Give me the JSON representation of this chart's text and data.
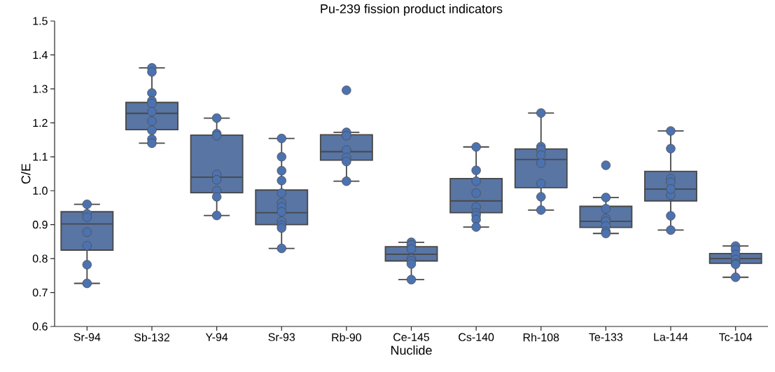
{
  "chart_data": {
    "type": "box",
    "title": "Pu-239 fission product indicators",
    "xlabel": "Nuclide",
    "ylabel": "C/E",
    "categories": [
      "Sr-94",
      "Sb-132",
      "Y-94",
      "Sr-93",
      "Rb-90",
      "Ce-145",
      "Cs-140",
      "Rh-108",
      "Te-133",
      "La-144",
      "Tc-104"
    ],
    "ylim": [
      0.6,
      1.5
    ],
    "yticks": [
      0.6,
      0.7,
      0.8,
      0.9,
      {
        "value": 1.0,
        "label": "1.0"
      },
      1.1,
      1.2,
      1.3,
      1.4,
      1.5
    ],
    "series": [
      {
        "color": "#5875a4",
        "boxes": [
          {
            "low": 0.727,
            "q1": 0.825,
            "median": 0.902,
            "q3": 0.938,
            "high": 0.96
          },
          {
            "low": 1.14,
            "q1": 1.18,
            "median": 1.228,
            "q3": 1.26,
            "high": 1.362
          },
          {
            "low": 0.927,
            "q1": 0.994,
            "median": 1.04,
            "q3": 1.164,
            "high": 1.214
          },
          {
            "low": 0.83,
            "q1": 0.9,
            "median": 0.935,
            "q3": 1.002,
            "high": 1.154
          },
          {
            "low": 1.028,
            "q1": 1.09,
            "median": 1.115,
            "q3": 1.165,
            "high": 1.172,
            "outliers": [
              1.296
            ]
          },
          {
            "low": 0.738,
            "q1": 0.793,
            "median": 0.813,
            "q3": 0.835,
            "high": 0.848
          },
          {
            "low": 0.893,
            "q1": 0.935,
            "median": 0.97,
            "q3": 1.036,
            "high": 1.129
          },
          {
            "low": 0.943,
            "q1": 1.009,
            "median": 1.092,
            "q3": 1.123,
            "high": 1.229
          },
          {
            "low": 0.874,
            "q1": 0.892,
            "median": 0.91,
            "q3": 0.954,
            "high": 0.98,
            "outliers": [
              1.075
            ]
          },
          {
            "low": 0.884,
            "q1": 0.97,
            "median": 1.005,
            "q3": 1.057,
            "high": 1.176
          },
          {
            "low": 0.745,
            "q1": 0.786,
            "median": 0.8,
            "q3": 0.815,
            "high": 0.837
          }
        ]
      },
      {
        "type": "scatter",
        "color": "#4c72b0",
        "x": [
          "Sr-94",
          "Sr-94",
          "Sr-94",
          "Sr-94",
          "Sr-94",
          "Sr-94",
          "Sr-94",
          "Sb-132",
          "Sb-132",
          "Sb-132",
          "Sb-132",
          "Sb-132",
          "Sb-132",
          "Sb-132",
          "Sb-132",
          "Sb-132",
          "Sb-132",
          "Y-94",
          "Y-94",
          "Y-94",
          "Y-94",
          "Y-94",
          "Y-94",
          "Y-94",
          "Y-94",
          "Sr-93",
          "Sr-93",
          "Sr-93",
          "Sr-93",
          "Sr-93",
          "Sr-93",
          "Sr-93",
          "Sr-93",
          "Sr-93",
          "Sr-93",
          "Sr-93",
          "Sr-93",
          "Rb-90",
          "Rb-90",
          "Rb-90",
          "Rb-90",
          "Rb-90",
          "Rb-90",
          "Ce-145",
          "Ce-145",
          "Ce-145",
          "Ce-145",
          "Ce-145",
          "Ce-145",
          "Ce-145",
          "Cs-140",
          "Cs-140",
          "Cs-140",
          "Cs-140",
          "Cs-140",
          "Cs-140",
          "Cs-140",
          "Cs-140",
          "Cs-140",
          "Rh-108",
          "Rh-108",
          "Rh-108",
          "Rh-108",
          "Rh-108",
          "Rh-108",
          "Rh-108",
          "Rh-108",
          "Te-133",
          "Te-133",
          "Te-133",
          "Te-133",
          "Te-133",
          "Te-133",
          "Te-133",
          "La-144",
          "La-144",
          "La-144",
          "La-144",
          "La-144",
          "La-144",
          "La-144",
          "La-144",
          "Tc-104",
          "Tc-104",
          "Tc-104",
          "Tc-104",
          "Tc-104",
          "Tc-104",
          "Tc-104"
        ],
        "values": [
          0.96,
          0.932,
          0.922,
          0.878,
          0.838,
          0.782,
          0.727,
          1.362,
          1.35,
          1.288,
          1.265,
          1.257,
          1.233,
          1.205,
          1.178,
          1.152,
          1.14,
          1.214,
          1.168,
          1.162,
          1.048,
          1.032,
          1.0,
          0.982,
          0.927,
          1.154,
          1.1,
          1.059,
          1.03,
          0.993,
          0.964,
          0.952,
          0.938,
          0.91,
          0.898,
          0.89,
          0.83,
          1.172,
          1.162,
          1.12,
          1.098,
          1.086,
          1.028,
          0.848,
          0.84,
          0.828,
          0.8,
          0.793,
          0.784,
          0.738,
          1.129,
          1.06,
          1.028,
          0.993,
          0.952,
          0.935,
          0.927,
          0.915,
          0.893,
          1.229,
          1.13,
          1.121,
          1.105,
          1.081,
          1.021,
          0.982,
          0.943,
          0.98,
          0.947,
          0.918,
          0.91,
          0.896,
          0.88,
          0.874,
          1.176,
          1.124,
          1.036,
          1.025,
          0.987,
          0.926,
          0.884,
          1.005,
          0.837,
          0.826,
          0.812,
          0.797,
          0.786,
          0.783,
          0.745
        ]
      }
    ]
  }
}
